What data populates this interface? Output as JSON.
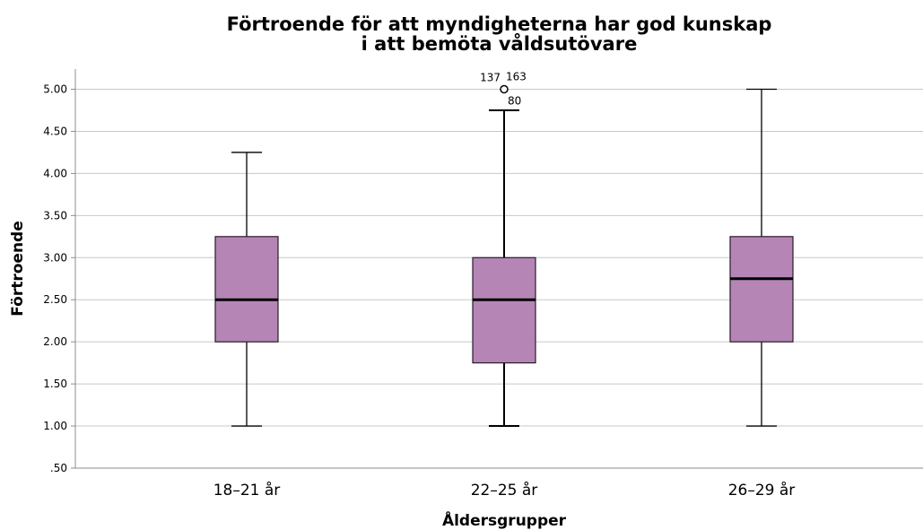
{
  "chart_data": {
    "type": "boxplot",
    "title_lines": [
      "Förtroende för att myndigheterna har god kunskap",
      "i att bemöta våldsutövare"
    ],
    "xlabel": "Åldersgrupper",
    "ylabel": "Förtroende",
    "ylim": [
      0.5,
      5.24
    ],
    "grid": "horizontal",
    "y_ticks": [
      0.5,
      1.0,
      1.5,
      2.0,
      2.5,
      3.0,
      3.5,
      4.0,
      4.5,
      5.0
    ],
    "y_tick_labels": [
      ".50",
      "1.00",
      "1.50",
      "2.00",
      "2.50",
      "3.00",
      "3.50",
      "4.00",
      "4.50",
      "5.00"
    ],
    "categories": [
      "18–21 år",
      "22–25 år",
      "26–29 år"
    ],
    "boxes": [
      {
        "category": "18–21 år",
        "whisker_low": 1.0,
        "q1": 2.0,
        "median": 2.5,
        "q3": 3.25,
        "whisker_high": 4.25,
        "outliers": []
      },
      {
        "category": "22–25 år",
        "whisker_low": 1.0,
        "q1": 1.75,
        "median": 2.5,
        "q3": 3.0,
        "whisker_high": 4.75,
        "outliers": [
          {
            "value": 5.0,
            "labels": [
              "137",
              "163",
              "80"
            ]
          }
        ]
      },
      {
        "category": "26–29 år",
        "whisker_low": 1.0,
        "q1": 2.0,
        "median": 2.75,
        "q3": 3.25,
        "whisker_high": 5.0,
        "outliers": []
      }
    ],
    "colors": {
      "box_fill": "#b586b5",
      "box_stroke": "#2a1a2a",
      "grid": "#c8c8c8",
      "axis": "#8c8c8c"
    }
  }
}
